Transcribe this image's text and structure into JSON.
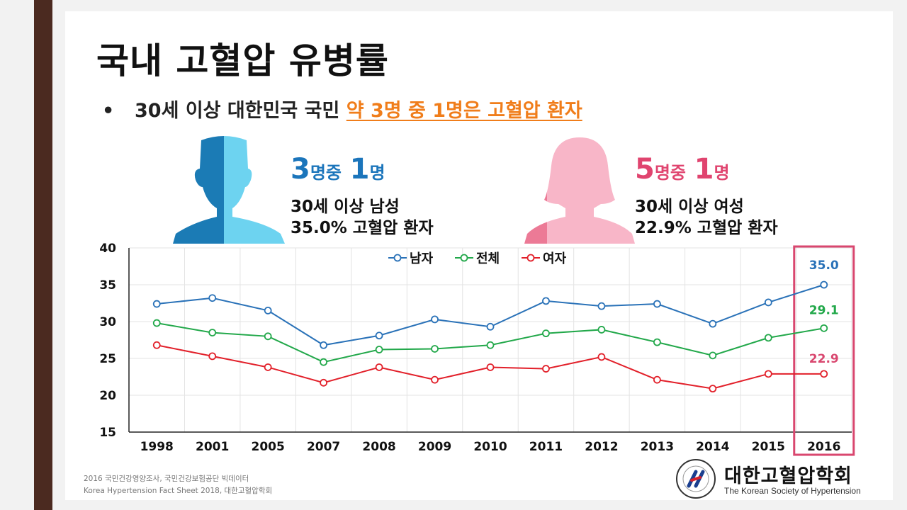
{
  "title": "국내 고혈압 유병률",
  "bullet": {
    "text": "30세 이상 대한민국 국민 ",
    "highlight": "약 3명 중 1명은 고혈압 환자"
  },
  "men": {
    "ratio_a": "3",
    "ratio_a_unit": "명중",
    "ratio_b": "1",
    "ratio_b_unit": "명",
    "line1": "30세 이상 남성",
    "line2": "35.0% 고혈압 환자",
    "color": "#1b75bb"
  },
  "women": {
    "ratio_a": "5",
    "ratio_a_unit": "명중",
    "ratio_b": "1",
    "ratio_b_unit": "명",
    "line1": "30세 이상 여성",
    "line2": "22.9% 고혈압 환자",
    "color": "#e0446f"
  },
  "chart_data": {
    "type": "line",
    "categories": [
      "1998",
      "2001",
      "2005",
      "2007",
      "2008",
      "2009",
      "2010",
      "2011",
      "2012",
      "2013",
      "2014",
      "2015",
      "2016"
    ],
    "ylim": [
      15,
      40
    ],
    "yticks": [
      15,
      20,
      25,
      30,
      35,
      40
    ],
    "grid": true,
    "legend_position": "top-center",
    "series": [
      {
        "name": "남자",
        "color": "#2a72b8",
        "values": [
          32.4,
          33.2,
          31.5,
          26.8,
          28.1,
          30.3,
          29.3,
          32.8,
          32.1,
          32.4,
          29.7,
          32.6,
          35.0
        ],
        "end_label": "35.0"
      },
      {
        "name": "전체",
        "color": "#22a84a",
        "values": [
          29.8,
          28.5,
          28.0,
          24.5,
          26.2,
          26.3,
          26.8,
          28.4,
          28.9,
          27.2,
          25.4,
          27.8,
          29.1
        ],
        "end_label": "29.1"
      },
      {
        "name": "여자",
        "color": "#e2202a",
        "values": [
          26.8,
          25.3,
          23.8,
          21.7,
          23.8,
          22.1,
          23.8,
          23.6,
          25.2,
          22.1,
          20.9,
          22.9,
          22.9
        ],
        "end_label": "22.9"
      }
    ],
    "highlight_category": "2016",
    "highlight_color": "#d9476f"
  },
  "source": {
    "line1": "2016 국민건강영양조사, 국민건강보험공단 빅데이터",
    "line2": "Korea Hypertension Fact Sheet 2018, 대한고혈압학회"
  },
  "logo": {
    "kr": "대한고혈압학회",
    "en": "The Korean Society of Hypertension"
  }
}
